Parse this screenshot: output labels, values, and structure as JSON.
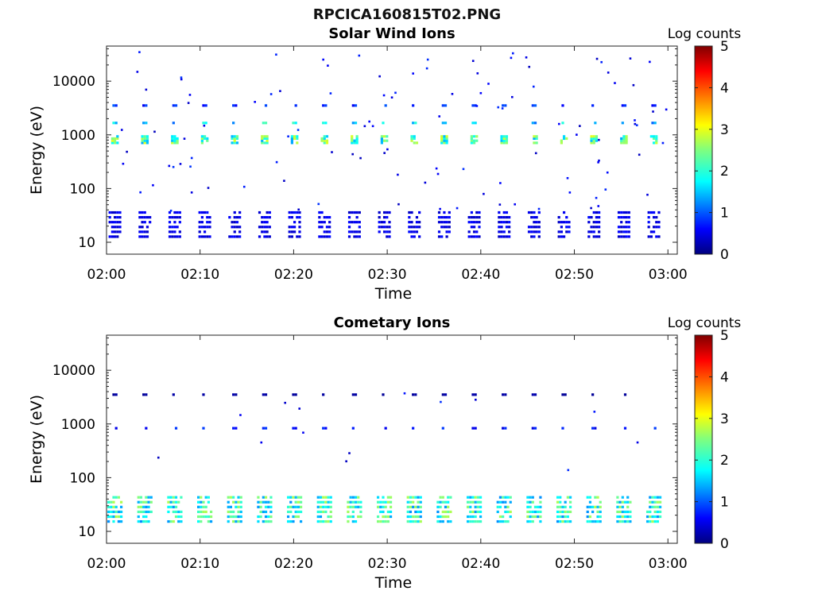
{
  "page": {
    "title": "RPCICA160815T02.PNG"
  },
  "colorbar": {
    "label": "Log counts",
    "ticks": [
      "0",
      "1",
      "2",
      "3",
      "4",
      "5"
    ],
    "colormap": "jet"
  },
  "chart_data": [
    {
      "type": "heatmap",
      "title": "Solar Wind Ions",
      "xlabel": "Time",
      "ylabel": "Energy (eV)",
      "x_ticks": [
        "02:00",
        "02:10",
        "02:20",
        "02:30",
        "02:40",
        "02:50",
        "03:00"
      ],
      "x_range": [
        "02:00",
        "03:01"
      ],
      "y_scale": "log",
      "y_ticks": [
        "10",
        "100",
        "1000",
        "10000"
      ],
      "y_range": [
        6,
        45000
      ],
      "color_scale": "log counts",
      "color_range": [
        0,
        5
      ],
      "sweep_period_min": 3.2,
      "sweep_start_min": 0.9,
      "features": [
        {
          "name": "solar wind peak",
          "energy_eV": 900,
          "log_counts": 2.6
        },
        {
          "name": "harmonic band",
          "energy_eV": 1800,
          "log_counts": 2.0
        },
        {
          "name": "harmonic band",
          "energy_eV": 3800,
          "log_counts": 1.0
        },
        {
          "name": "low-energy band",
          "energy_eV": 25,
          "log_counts": 0.6
        }
      ]
    },
    {
      "type": "heatmap",
      "title": "Cometary Ions",
      "xlabel": "Time",
      "ylabel": "Energy (eV)",
      "x_ticks": [
        "02:00",
        "02:10",
        "02:20",
        "02:30",
        "02:40",
        "02:50",
        "03:00"
      ],
      "x_range": [
        "02:00",
        "03:01"
      ],
      "y_scale": "log",
      "y_ticks": [
        "10",
        "100",
        "1000",
        "10000"
      ],
      "y_range": [
        6,
        45000
      ],
      "color_scale": "log counts",
      "color_range": [
        0,
        5
      ],
      "sweep_period_min": 3.2,
      "sweep_start_min": 0.9,
      "features": [
        {
          "name": "cometary ion core",
          "energy_eV": 30,
          "log_counts": 2.4
        },
        {
          "name": "high-energy dots",
          "energy_eV": 900,
          "log_counts": 0.8
        },
        {
          "name": "sparse dots",
          "energy_eV": 3800,
          "log_counts": 0.2
        }
      ]
    }
  ]
}
